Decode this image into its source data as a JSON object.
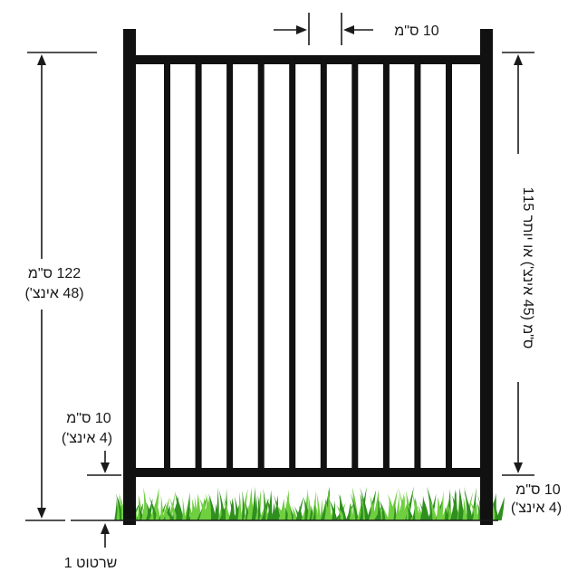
{
  "diagram": {
    "colors": {
      "fence": "#111111",
      "dimension_line": "#1a1a1a",
      "grass_dark": "#2f8f1f",
      "grass_light": "#6fcf3f",
      "background": "#ffffff"
    },
    "picket_count": 10,
    "labels": {
      "top_gap": "10 ס\"מ",
      "total_height_line1": "122 ס\"מ",
      "total_height_line2": "(48 אינצ')",
      "left_bottom_gap_line1": "10 ס\"מ",
      "left_bottom_gap_line2": "(4 אינצ')",
      "right_bottom_gap_line1": "10 ס\"מ",
      "right_bottom_gap_line2": "(4 אינצ')",
      "picket_height": "115 ס\"מ (45 אינצ') או יותר",
      "caption": "שרטוט 1"
    }
  }
}
